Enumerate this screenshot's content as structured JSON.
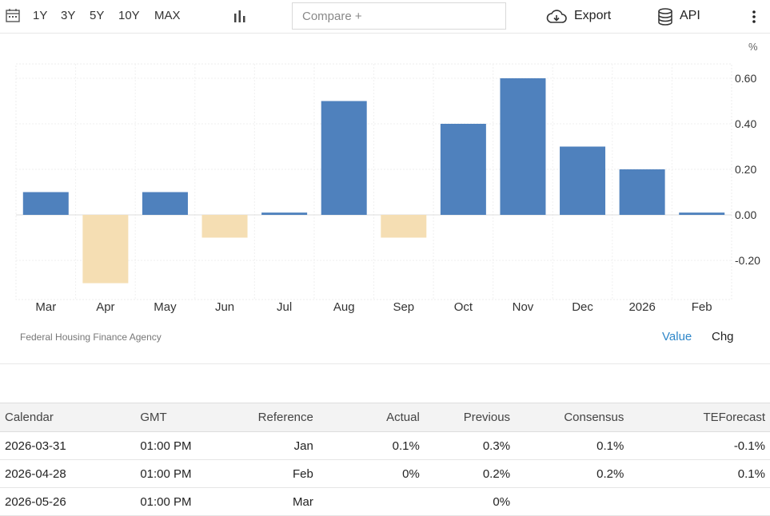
{
  "toolbar": {
    "ranges": [
      "1Y",
      "3Y",
      "5Y",
      "10Y",
      "MAX"
    ],
    "compare_placeholder": "Compare +",
    "export_label": "Export",
    "api_label": "API"
  },
  "chart_data": {
    "type": "bar",
    "categories": [
      "Mar",
      "Apr",
      "May",
      "Jun",
      "Jul",
      "Aug",
      "Sep",
      "Oct",
      "Nov",
      "Dec",
      "2026",
      "Feb"
    ],
    "values": [
      0.1,
      -0.3,
      0.1,
      -0.1,
      0.01,
      0.5,
      -0.1,
      0.4,
      0.6,
      0.3,
      0.2,
      0.01
    ],
    "ylabel": "%",
    "yticks": [
      "0.60",
      "0.40",
      "0.20",
      "0.00",
      "-0.20"
    ],
    "ylim": [
      -0.37,
      0.67
    ],
    "grid": true,
    "colors": {
      "positive": "#4f81bd",
      "negative": "#f5deb3"
    }
  },
  "source": "Federal Housing Finance Agency",
  "view_toggle": {
    "value_label": "Value",
    "chg_label": "Chg"
  },
  "calendar": {
    "headers": [
      "Calendar",
      "GMT",
      "Reference",
      "Actual",
      "Previous",
      "Consensus",
      "TEForecast"
    ],
    "rows": [
      [
        "2026-03-31",
        "01:00 PM",
        "Jan",
        "0.1%",
        "0.3%",
        "0.1%",
        "-0.1%"
      ],
      [
        "2026-04-28",
        "01:00 PM",
        "Feb",
        "0%",
        "0.2%",
        "0.2%",
        "0.1%"
      ],
      [
        "2026-05-26",
        "01:00 PM",
        "Mar",
        "",
        "0%",
        "",
        ""
      ]
    ]
  }
}
